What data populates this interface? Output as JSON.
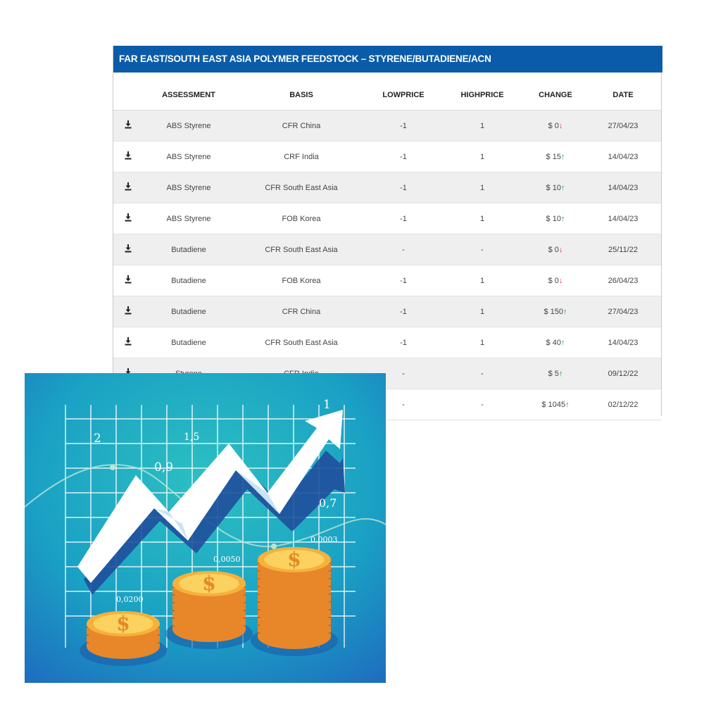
{
  "table_title": "FAR EAST/SOUTH EAST ASIA POLYMER FEEDSTOCK – STYRENE/BUTADIENE/ACN",
  "columns": [
    "",
    "ASSESSMENT",
    "BASIS",
    "LOWPRICE",
    "HIGHPRICE",
    "CHANGE",
    "DATE"
  ],
  "rows": [
    {
      "assessment": "ABS Styrene",
      "basis": "CFR China",
      "low": "-1",
      "high": "1",
      "change": "$ 0",
      "dir": "down",
      "date": "27/04/23"
    },
    {
      "assessment": "ABS Styrene",
      "basis": "CRF India",
      "low": "-1",
      "high": "1",
      "change": "$ 15",
      "dir": "up",
      "date": "14/04/23"
    },
    {
      "assessment": "ABS Styrene",
      "basis": "CFR South East Asia",
      "low": "-1",
      "high": "1",
      "change": "$ 10",
      "dir": "up",
      "date": "14/04/23"
    },
    {
      "assessment": "ABS Styrene",
      "basis": "FOB Korea",
      "low": "-1",
      "high": "1",
      "change": "$ 10",
      "dir": "up",
      "date": "14/04/23"
    },
    {
      "assessment": "Butadiene",
      "basis": "CFR South East Asia",
      "low": "-",
      "high": "-",
      "change": "$ 0",
      "dir": "down",
      "date": "25/11/22"
    },
    {
      "assessment": "Butadiene",
      "basis": "FOB Korea",
      "low": "-1",
      "high": "1",
      "change": "$ 0",
      "dir": "down",
      "date": "26/04/23"
    },
    {
      "assessment": "Butadiene",
      "basis": "CFR China",
      "low": "-1",
      "high": "1",
      "change": "$ 150",
      "dir": "up",
      "date": "27/04/23"
    },
    {
      "assessment": "Butadiene",
      "basis": "CFR South East Asia",
      "low": "-1",
      "high": "1",
      "change": "$ 40",
      "dir": "up",
      "date": "14/04/23"
    },
    {
      "assessment": "Styrene",
      "basis": "CFR India",
      "low": "-",
      "high": "-",
      "change": "$ 5",
      "dir": "up",
      "date": "09/12/22"
    },
    {
      "assessment": "",
      "basis": "",
      "low": "-",
      "high": "-",
      "change": "$ 1045",
      "dir": "up",
      "date": "02/12/22"
    }
  ],
  "icons": {
    "download": "download-icon",
    "up": "arrow-up-icon",
    "down": "arrow-down-icon"
  },
  "colors": {
    "header": "#0b5ca8",
    "up": "#1f9a3b",
    "down": "#e23434"
  },
  "illustration": {
    "labels": [
      "2",
      "1,5",
      "0,9",
      "1",
      "0,7",
      "0,0003",
      "0,0050",
      "0,0200"
    ],
    "coin_symbol": "$"
  }
}
